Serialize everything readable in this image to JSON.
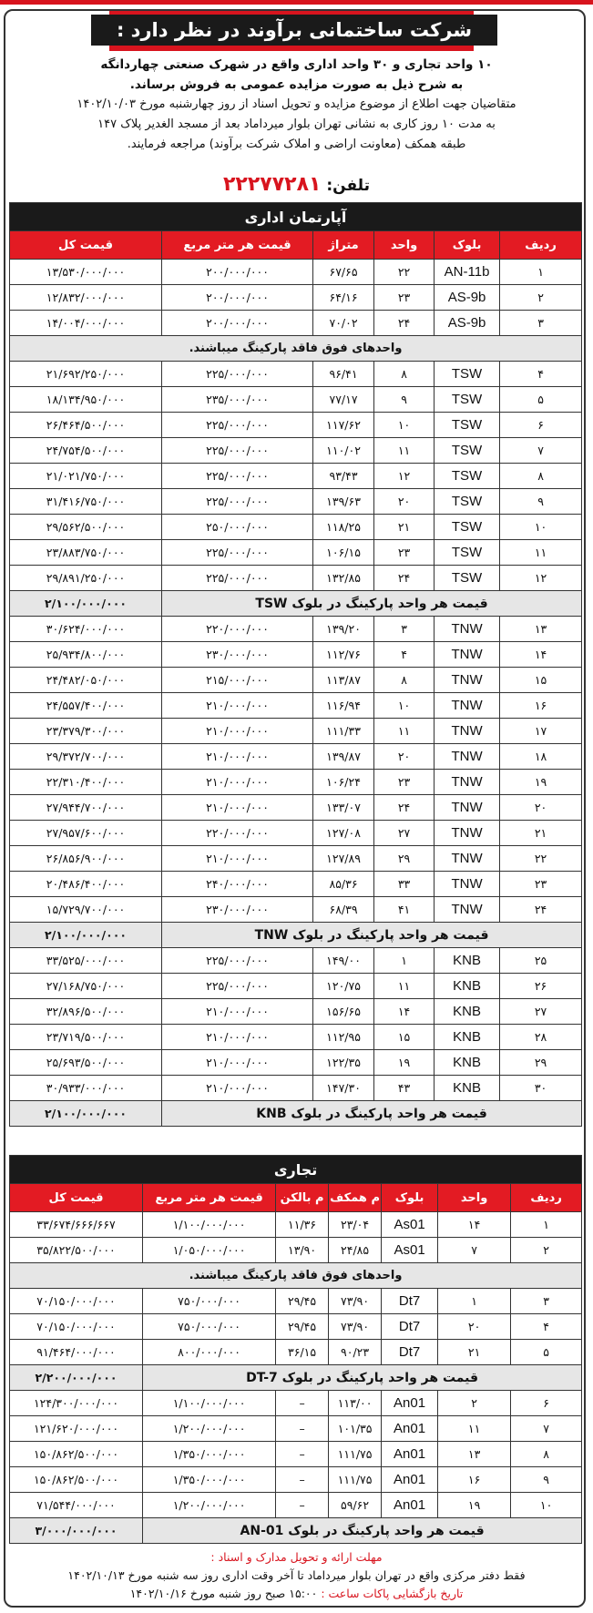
{
  "header": {
    "title": "شرکت ساختمانی برآوند در نظر دارد :"
  },
  "intro": {
    "line1": "۱۰ واحد تجاری و ۳۰ واحد اداری واقع در شهرک صنعتی چهاردانگه",
    "line2": "به شرح ذیل به صورت مزایده عمومی به فروش برساند.",
    "line3": "متقاضیان جهت اطلاع از موضوع مزایده و تحویل اسناد از روز چهارشنبه مورخ ۱۴۰۲/۱۰/۰۳",
    "line4": "به مدت ۱۰ روز کاری به نشانی تهران بلوار میرداماد بعد از مسجد الغدیر پلاک ۱۴۷",
    "line5": "طبقه همکف (معاونت اراضی و املاک شرکت برآوند) مراجعه فرمایند.",
    "phone_label": "تلفن:",
    "phone": "۲۲۲۷۷۲۸۱"
  },
  "office": {
    "title": "آپارتمان اداری",
    "headers": [
      "ردیف",
      "بلوک",
      "واحد",
      "متراژ",
      "قیمت هر متر مربع",
      "قیمت کل"
    ],
    "rows": [
      {
        "type": "row",
        "cells": [
          "۱",
          "AN-11b",
          "۲۲",
          "۶۷/۶۵",
          "۲۰۰/۰۰۰/۰۰۰",
          "۱۳/۵۳۰/۰۰۰/۰۰۰"
        ]
      },
      {
        "type": "row",
        "cells": [
          "۲",
          "AS-9b",
          "۲۳",
          "۶۴/۱۶",
          "۲۰۰/۰۰۰/۰۰۰",
          "۱۲/۸۳۲/۰۰۰/۰۰۰"
        ]
      },
      {
        "type": "row",
        "cells": [
          "۳",
          "AS-9b",
          "۲۴",
          "۷۰/۰۲",
          "۲۰۰/۰۰۰/۰۰۰",
          "۱۴/۰۰۴/۰۰۰/۰۰۰"
        ]
      },
      {
        "type": "note",
        "text": "واحدهای فوق فاقد پارکینگ میباشند."
      },
      {
        "type": "row",
        "cells": [
          "۴",
          "TSW",
          "۸",
          "۹۶/۴۱",
          "۲۲۵/۰۰۰/۰۰۰",
          "۲۱/۶۹۲/۲۵۰/۰۰۰"
        ]
      },
      {
        "type": "row",
        "cells": [
          "۵",
          "TSW",
          "۹",
          "۷۷/۱۷",
          "۲۳۵/۰۰۰/۰۰۰",
          "۱۸/۱۳۴/۹۵۰/۰۰۰"
        ]
      },
      {
        "type": "row",
        "cells": [
          "۶",
          "TSW",
          "۱۰",
          "۱۱۷/۶۲",
          "۲۲۵/۰۰۰/۰۰۰",
          "۲۶/۴۶۴/۵۰۰/۰۰۰"
        ]
      },
      {
        "type": "row",
        "cells": [
          "۷",
          "TSW",
          "۱۱",
          "۱۱۰/۰۲",
          "۲۲۵/۰۰۰/۰۰۰",
          "۲۴/۷۵۴/۵۰۰/۰۰۰"
        ]
      },
      {
        "type": "row",
        "cells": [
          "۸",
          "TSW",
          "۱۲",
          "۹۳/۴۳",
          "۲۲۵/۰۰۰/۰۰۰",
          "۲۱/۰۲۱/۷۵۰/۰۰۰"
        ]
      },
      {
        "type": "row",
        "cells": [
          "۹",
          "TSW",
          "۲۰",
          "۱۳۹/۶۳",
          "۲۲۵/۰۰۰/۰۰۰",
          "۳۱/۴۱۶/۷۵۰/۰۰۰"
        ]
      },
      {
        "type": "row",
        "cells": [
          "۱۰",
          "TSW",
          "۲۱",
          "۱۱۸/۲۵",
          "۲۵۰/۰۰۰/۰۰۰",
          "۲۹/۵۶۲/۵۰۰/۰۰۰"
        ]
      },
      {
        "type": "row",
        "cells": [
          "۱۱",
          "TSW",
          "۲۳",
          "۱۰۶/۱۵",
          "۲۲۵/۰۰۰/۰۰۰",
          "۲۳/۸۸۳/۷۵۰/۰۰۰"
        ]
      },
      {
        "type": "row",
        "cells": [
          "۱۲",
          "TSW",
          "۲۴",
          "۱۳۲/۸۵",
          "۲۲۵/۰۰۰/۰۰۰",
          "۲۹/۸۹۱/۲۵۰/۰۰۰"
        ]
      },
      {
        "type": "parking",
        "label": "قیمت هر واحد پارکینگ در بلوک TSW",
        "value": "۲/۱۰۰/۰۰۰/۰۰۰"
      },
      {
        "type": "row",
        "cells": [
          "۱۳",
          "TNW",
          "۳",
          "۱۳۹/۲۰",
          "۲۲۰/۰۰۰/۰۰۰",
          "۳۰/۶۲۴/۰۰۰/۰۰۰"
        ]
      },
      {
        "type": "row",
        "cells": [
          "۱۴",
          "TNW",
          "۴",
          "۱۱۲/۷۶",
          "۲۳۰/۰۰۰/۰۰۰",
          "۲۵/۹۳۴/۸۰۰/۰۰۰"
        ]
      },
      {
        "type": "row",
        "cells": [
          "۱۵",
          "TNW",
          "۸",
          "۱۱۳/۸۷",
          "۲۱۵/۰۰۰/۰۰۰",
          "۲۴/۴۸۲/۰۵۰/۰۰۰"
        ]
      },
      {
        "type": "row",
        "cells": [
          "۱۶",
          "TNW",
          "۱۰",
          "۱۱۶/۹۴",
          "۲۱۰/۰۰۰/۰۰۰",
          "۲۴/۵۵۷/۴۰۰/۰۰۰"
        ]
      },
      {
        "type": "row",
        "cells": [
          "۱۷",
          "TNW",
          "۱۱",
          "۱۱۱/۳۳",
          "۲۱۰/۰۰۰/۰۰۰",
          "۲۳/۳۷۹/۳۰۰/۰۰۰"
        ]
      },
      {
        "type": "row",
        "cells": [
          "۱۸",
          "TNW",
          "۲۰",
          "۱۳۹/۸۷",
          "۲۱۰/۰۰۰/۰۰۰",
          "۲۹/۳۷۲/۷۰۰/۰۰۰"
        ]
      },
      {
        "type": "row",
        "cells": [
          "۱۹",
          "TNW",
          "۲۳",
          "۱۰۶/۲۴",
          "۲۱۰/۰۰۰/۰۰۰",
          "۲۲/۳۱۰/۴۰۰/۰۰۰"
        ]
      },
      {
        "type": "row",
        "cells": [
          "۲۰",
          "TNW",
          "۲۴",
          "۱۳۳/۰۷",
          "۲۱۰/۰۰۰/۰۰۰",
          "۲۷/۹۴۴/۷۰۰/۰۰۰"
        ]
      },
      {
        "type": "row",
        "cells": [
          "۲۱",
          "TNW",
          "۲۷",
          "۱۲۷/۰۸",
          "۲۲۰/۰۰۰/۰۰۰",
          "۲۷/۹۵۷/۶۰۰/۰۰۰"
        ]
      },
      {
        "type": "row",
        "cells": [
          "۲۲",
          "TNW",
          "۲۹",
          "۱۲۷/۸۹",
          "۲۱۰/۰۰۰/۰۰۰",
          "۲۶/۸۵۶/۹۰۰/۰۰۰"
        ]
      },
      {
        "type": "row",
        "cells": [
          "۲۳",
          "TNW",
          "۳۳",
          "۸۵/۳۶",
          "۲۴۰/۰۰۰/۰۰۰",
          "۲۰/۴۸۶/۴۰۰/۰۰۰"
        ]
      },
      {
        "type": "row",
        "cells": [
          "۲۴",
          "TNW",
          "۴۱",
          "۶۸/۳۹",
          "۲۳۰/۰۰۰/۰۰۰",
          "۱۵/۷۲۹/۷۰۰/۰۰۰"
        ]
      },
      {
        "type": "parking",
        "label": "قیمت هر واحد پارکینگ در بلوک TNW",
        "value": "۲/۱۰۰/۰۰۰/۰۰۰"
      },
      {
        "type": "row",
        "cells": [
          "۲۵",
          "KNB",
          "۱",
          "۱۴۹/۰۰",
          "۲۲۵/۰۰۰/۰۰۰",
          "۳۳/۵۲۵/۰۰۰/۰۰۰"
        ]
      },
      {
        "type": "row",
        "cells": [
          "۲۶",
          "KNB",
          "۱۱",
          "۱۲۰/۷۵",
          "۲۲۵/۰۰۰/۰۰۰",
          "۲۷/۱۶۸/۷۵۰/۰۰۰"
        ]
      },
      {
        "type": "row",
        "cells": [
          "۲۷",
          "KNB",
          "۱۴",
          "۱۵۶/۶۵",
          "۲۱۰/۰۰۰/۰۰۰",
          "۳۲/۸۹۶/۵۰۰/۰۰۰"
        ]
      },
      {
        "type": "row",
        "cells": [
          "۲۸",
          "KNB",
          "۱۵",
          "۱۱۲/۹۵",
          "۲۱۰/۰۰۰/۰۰۰",
          "۲۳/۷۱۹/۵۰۰/۰۰۰"
        ]
      },
      {
        "type": "row",
        "cells": [
          "۲۹",
          "KNB",
          "۱۹",
          "۱۲۲/۳۵",
          "۲۱۰/۰۰۰/۰۰۰",
          "۲۵/۶۹۳/۵۰۰/۰۰۰"
        ]
      },
      {
        "type": "row",
        "cells": [
          "۳۰",
          "KNB",
          "۴۳",
          "۱۴۷/۳۰",
          "۲۱۰/۰۰۰/۰۰۰",
          "۳۰/۹۳۳/۰۰۰/۰۰۰"
        ]
      },
      {
        "type": "parking",
        "label": "قیمت هر واحد پارکینگ در بلوک KNB",
        "value": "۲/۱۰۰/۰۰۰/۰۰۰"
      }
    ]
  },
  "commercial": {
    "title": "تجاری",
    "headers": [
      "ردیف",
      "واحد",
      "بلوک",
      "م همکف",
      "م بالکن",
      "قیمت هر متر مربع",
      "قیمت کل"
    ],
    "rows": [
      {
        "type": "row",
        "cells": [
          "۱",
          "۱۴",
          "As01",
          "۲۳/۰۴",
          "۱۱/۳۶",
          "۱/۱۰۰/۰۰۰/۰۰۰",
          "۳۳/۶۷۴/۶۶۶/۶۶۷"
        ]
      },
      {
        "type": "row",
        "cells": [
          "۲",
          "۷",
          "As01",
          "۲۴/۸۵",
          "۱۳/۹۰",
          "۱/۰۵۰/۰۰۰/۰۰۰",
          "۳۵/۸۲۲/۵۰۰/۰۰۰"
        ]
      },
      {
        "type": "note",
        "text": "واحدهای فوق فاقد پارکینگ میباشند."
      },
      {
        "type": "row",
        "cells": [
          "۳",
          "۱",
          "Dt7",
          "۷۳/۹۰",
          "۲۹/۴۵",
          "۷۵۰/۰۰۰/۰۰۰",
          "۷۰/۱۵۰/۰۰۰/۰۰۰"
        ]
      },
      {
        "type": "row",
        "cells": [
          "۴",
          "۲۰",
          "Dt7",
          "۷۳/۹۰",
          "۲۹/۴۵",
          "۷۵۰/۰۰۰/۰۰۰",
          "۷۰/۱۵۰/۰۰۰/۰۰۰"
        ]
      },
      {
        "type": "row",
        "cells": [
          "۵",
          "۲۱",
          "Dt7",
          "۹۰/۲۳",
          "۳۶/۱۵",
          "۸۰۰/۰۰۰/۰۰۰",
          "۹۱/۴۶۴/۰۰۰/۰۰۰"
        ]
      },
      {
        "type": "parking",
        "label": "قیمت هر واحد پارکینگ در بلوک DT-7",
        "value": "۲/۲۰۰/۰۰۰/۰۰۰"
      },
      {
        "type": "row",
        "cells": [
          "۶",
          "۲",
          "An01",
          "۱۱۳/۰۰",
          "–",
          "۱/۱۰۰/۰۰۰/۰۰۰",
          "۱۲۴/۳۰۰/۰۰۰/۰۰۰"
        ]
      },
      {
        "type": "row",
        "cells": [
          "۷",
          "۱۱",
          "An01",
          "۱۰۱/۳۵",
          "–",
          "۱/۲۰۰/۰۰۰/۰۰۰",
          "۱۲۱/۶۲۰/۰۰۰/۰۰۰"
        ]
      },
      {
        "type": "row",
        "cells": [
          "۸",
          "۱۳",
          "An01",
          "۱۱۱/۷۵",
          "–",
          "۱/۳۵۰/۰۰۰/۰۰۰",
          "۱۵۰/۸۶۲/۵۰۰/۰۰۰"
        ]
      },
      {
        "type": "row",
        "cells": [
          "۹",
          "۱۶",
          "An01",
          "۱۱۱/۷۵",
          "–",
          "۱/۳۵۰/۰۰۰/۰۰۰",
          "۱۵۰/۸۶۲/۵۰۰/۰۰۰"
        ]
      },
      {
        "type": "row",
        "cells": [
          "۱۰",
          "۱۹",
          "An01",
          "۵۹/۶۲",
          "–",
          "۱/۲۰۰/۰۰۰/۰۰۰",
          "۷۱/۵۴۴/۰۰۰/۰۰۰"
        ]
      },
      {
        "type": "parking",
        "label": "قیمت هر واحد پارکینگ در بلوک AN-01",
        "value": "۳/۰۰۰/۰۰۰/۰۰۰"
      }
    ]
  },
  "footer": {
    "deadline_label": "مهلت ارائه و تحویل مدارک و اسناد :",
    "deadline_text": "فقط دفتر مرکزی واقع در تهران بلوار میرداماد تا آخر وقت اداری روز سه شنبه مورخ ۱۴۰۲/۱۰/۱۳",
    "opening_label": "تاریخ بازگشایی پاکات ساعت :",
    "opening_text": "۱۵:۰۰ صبح روز شنبه مورخ ۱۴۰۲/۱۰/۱۶"
  },
  "colors": {
    "accent": "#e31b23",
    "dark": "#1a1a1a",
    "note_bg": "#e6e6e6"
  }
}
